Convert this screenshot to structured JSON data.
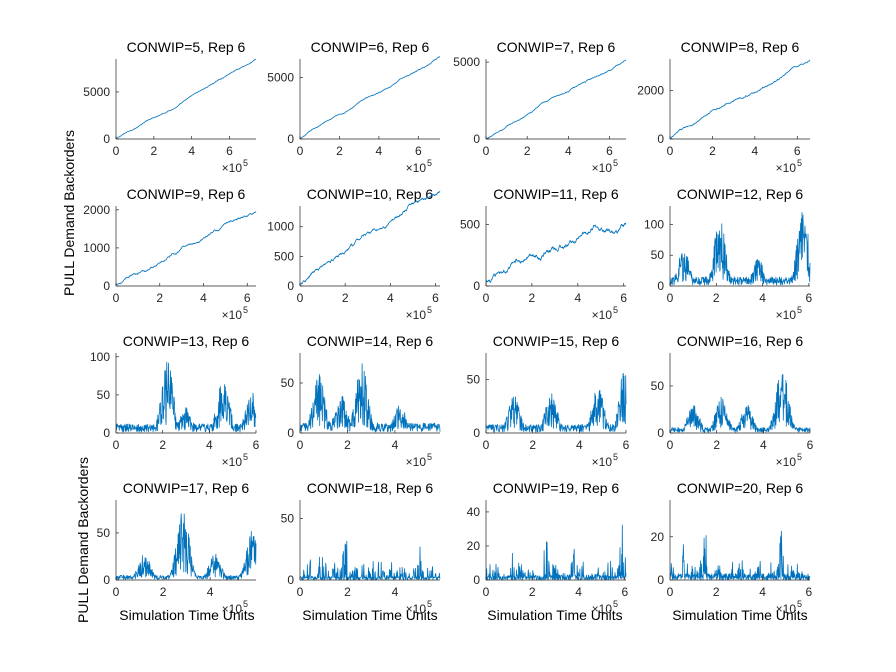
{
  "figure": {
    "ylabel": "PULL Demand Backorders",
    "xlabel": "Simulation Time Units",
    "series_color": "#0072bd",
    "x_exponent_base": "×10",
    "x_exponent_power": "5"
  },
  "chart_data": [
    {
      "type": "line",
      "title": "CONWIP=5, Rep 6",
      "xlim": [
        0,
        7.4
      ],
      "ylim": [
        0,
        8500
      ],
      "xticks": [
        0,
        2,
        4,
        6
      ],
      "yticks": [
        0,
        5000
      ],
      "x_exponent": 5,
      "pattern": "linear",
      "series": [
        {
          "start": 0,
          "end": 8500,
          "noise": 0.01
        }
      ]
    },
    {
      "type": "line",
      "title": "CONWIP=6, Rep 6",
      "xlim": [
        0,
        7.1
      ],
      "ylim": [
        0,
        6500
      ],
      "xticks": [
        0,
        2,
        4,
        6
      ],
      "yticks": [
        0,
        5000
      ],
      "x_exponent": 5,
      "pattern": "linear",
      "series": [
        {
          "start": 0,
          "end": 6500,
          "noise": 0.012
        }
      ]
    },
    {
      "type": "line",
      "title": "CONWIP=7, Rep 6",
      "xlim": [
        0,
        6.8
      ],
      "ylim": [
        0,
        5200
      ],
      "xticks": [
        0,
        2,
        4,
        6
      ],
      "yticks": [
        0,
        5000
      ],
      "x_exponent": 5,
      "pattern": "linear",
      "series": [
        {
          "start": 0,
          "end": 5000,
          "noise": 0.015
        }
      ]
    },
    {
      "type": "line",
      "title": "CONWIP=8, Rep 6",
      "xlim": [
        0,
        6.6
      ],
      "ylim": [
        0,
        3300
      ],
      "xticks": [
        0,
        2,
        4,
        6
      ],
      "yticks": [
        0,
        2000
      ],
      "x_exponent": 5,
      "pattern": "linear",
      "series": [
        {
          "start": 0,
          "end": 3200,
          "noise": 0.02
        }
      ]
    },
    {
      "type": "line",
      "title": "CONWIP=9, Rep 6",
      "xlim": [
        0,
        6.4
      ],
      "ylim": [
        0,
        2100
      ],
      "xticks": [
        0,
        2,
        4,
        6
      ],
      "yticks": [
        0,
        1000,
        2000
      ],
      "x_exponent": 5,
      "pattern": "linear",
      "series": [
        {
          "start": 50,
          "end": 2050,
          "noise": 0.025
        }
      ]
    },
    {
      "type": "line",
      "title": "CONWIP=10, Rep 6",
      "xlim": [
        0,
        6.2
      ],
      "ylim": [
        0,
        1350
      ],
      "xticks": [
        0,
        2,
        4,
        6
      ],
      "yticks": [
        0,
        500,
        1000
      ],
      "x_exponent": 5,
      "pattern": "linear",
      "series": [
        {
          "start": 0,
          "end": 1320,
          "noise": 0.04
        }
      ]
    },
    {
      "type": "line",
      "title": "CONWIP=11, Rep 6",
      "xlim": [
        0,
        6.1
      ],
      "ylim": [
        0,
        650
      ],
      "xticks": [
        0,
        2,
        4,
        6
      ],
      "yticks": [
        0,
        500
      ],
      "x_exponent": 5,
      "pattern": "linear",
      "series": [
        {
          "start": 30,
          "end": 580,
          "noise": 0.07
        }
      ]
    },
    {
      "type": "line",
      "title": "CONWIP=12, Rep 6",
      "xlim": [
        0,
        6.05
      ],
      "ylim": [
        0,
        130
      ],
      "xticks": [
        0,
        2,
        4,
        6
      ],
      "yticks": [
        0,
        50,
        100
      ],
      "x_exponent": 5,
      "pattern": "fluctuating",
      "peaks": [
        [
          2.15,
          110
        ],
        [
          5.75,
          125
        ],
        [
          0.6,
          60
        ],
        [
          3.8,
          45
        ]
      ],
      "base": 15
    },
    {
      "type": "line",
      "title": "CONWIP=13, Rep 6",
      "xlim": [
        0,
        6.0
      ],
      "ylim": [
        0,
        105
      ],
      "xticks": [
        0,
        2,
        4,
        6
      ],
      "yticks": [
        0,
        50,
        100
      ],
      "x_exponent": 5,
      "pattern": "fluctuating",
      "peaks": [
        [
          2.2,
          95
        ],
        [
          4.6,
          80
        ],
        [
          3.0,
          35
        ],
        [
          5.8,
          55
        ]
      ],
      "base": 12
    },
    {
      "type": "line",
      "title": "CONWIP=14, Rep 6",
      "xlim": [
        0,
        5.9
      ],
      "ylim": [
        0,
        80
      ],
      "xticks": [
        0,
        2,
        4
      ],
      "yticks": [
        0,
        50
      ],
      "x_exponent": 5,
      "pattern": "fluctuating",
      "peaks": [
        [
          0.8,
          60
        ],
        [
          2.6,
          72
        ],
        [
          1.7,
          45
        ],
        [
          4.2,
          30
        ]
      ],
      "base": 10
    },
    {
      "type": "line",
      "title": "CONWIP=15, Rep 6",
      "xlim": [
        0,
        6.0
      ],
      "ylim": [
        0,
        75
      ],
      "xticks": [
        0,
        2,
        4,
        6
      ],
      "yticks": [
        0,
        50
      ],
      "x_exponent": 5,
      "pattern": "fluctuating",
      "peaks": [
        [
          2.8,
          40
        ],
        [
          4.8,
          45
        ],
        [
          6.0,
          72
        ],
        [
          1.2,
          35
        ]
      ],
      "base": 8
    },
    {
      "type": "line",
      "title": "CONWIP=16, Rep 6",
      "xlim": [
        0,
        6.0
      ],
      "ylim": [
        0,
        85
      ],
      "xticks": [
        0,
        2,
        4,
        6
      ],
      "yticks": [
        0,
        50
      ],
      "x_exponent": 5,
      "pattern": "fluctuating",
      "peaks": [
        [
          4.8,
          78
        ],
        [
          2.2,
          40
        ],
        [
          1.0,
          30
        ],
        [
          3.3,
          30
        ]
      ],
      "base": 6
    },
    {
      "type": "line",
      "title": "CONWIP=17, Rep 6",
      "xlim": [
        0,
        5.95
      ],
      "ylim": [
        0,
        85
      ],
      "xticks": [
        0,
        2,
        4
      ],
      "yticks": [
        0,
        50
      ],
      "x_exponent": 5,
      "pattern": "fluctuating",
      "peaks": [
        [
          2.85,
          80
        ],
        [
          5.8,
          55
        ],
        [
          1.2,
          30
        ],
        [
          4.2,
          28
        ]
      ],
      "base": 5
    },
    {
      "type": "line",
      "title": "CONWIP=18, Rep 6",
      "xlim": [
        0,
        5.9
      ],
      "ylim": [
        0,
        65
      ],
      "xticks": [
        0,
        2,
        4
      ],
      "yticks": [
        0,
        50
      ],
      "x_exponent": 5,
      "pattern": "spiky",
      "peaks": [
        [
          1.9,
          60
        ],
        [
          0.9,
          40
        ],
        [
          3.2,
          35
        ],
        [
          5.0,
          30
        ]
      ],
      "base": 2
    },
    {
      "type": "line",
      "title": "CONWIP=19, Rep 6",
      "xlim": [
        0,
        6.05
      ],
      "ylim": [
        0,
        47
      ],
      "xticks": [
        0,
        2,
        4,
        6
      ],
      "yticks": [
        0,
        20,
        40
      ],
      "x_exponent": 5,
      "pattern": "spiky",
      "peaks": [
        [
          5.9,
          46
        ],
        [
          2.6,
          30
        ],
        [
          3.8,
          28
        ],
        [
          1.2,
          22
        ]
      ],
      "base": 1
    },
    {
      "type": "line",
      "title": "CONWIP=20, Rep 6",
      "xlim": [
        0,
        6.05
      ],
      "ylim": [
        0,
        37
      ],
      "xticks": [
        0,
        2,
        4,
        6
      ],
      "yticks": [
        0,
        20
      ],
      "x_exponent": 5,
      "pattern": "spiky",
      "peaks": [
        [
          1.5,
          35
        ],
        [
          4.8,
          33
        ],
        [
          0.6,
          22
        ],
        [
          2.8,
          20
        ]
      ],
      "base": 1
    }
  ]
}
